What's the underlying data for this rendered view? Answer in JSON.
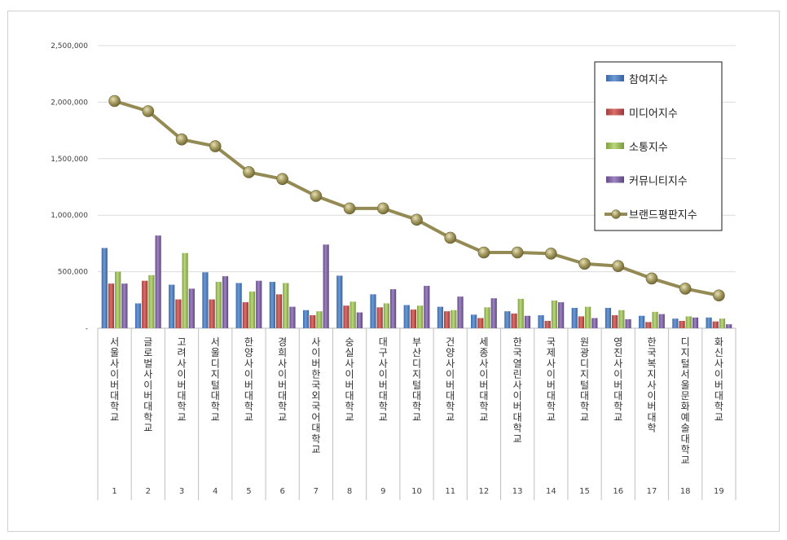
{
  "chart_data": {
    "type": "bar",
    "title": "",
    "xlabel": "",
    "ylabel": "",
    "ylim": [
      0,
      2500000
    ],
    "y_ticks": [
      "-",
      "500,000",
      "1,000,000",
      "1,500,000",
      "2,000,000",
      "2,500,000"
    ],
    "grid": true,
    "legend_position": "top-right",
    "categories": [
      "서울사이버대학교",
      "글로벌사이버대학교",
      "고려사이버대학교",
      "서울디지털대학교",
      "한양사이버대학교",
      "경희사이버대학교",
      "사이버한국외국어대학교",
      "숭실사이버대학교",
      "대구사이버대학교",
      "부산디지털대학교",
      "건양사이버대학교",
      "세종사이버대학교",
      "한국열린사이버대학교",
      "국제사이버대학교",
      "원광디지털대학교",
      "영진사이버대학교",
      "한국복지사이버대학",
      "디지털서울문화예술대학교",
      "화신사이버대학교"
    ],
    "ranks": [
      "1",
      "2",
      "3",
      "4",
      "5",
      "6",
      "7",
      "8",
      "9",
      "10",
      "11",
      "12",
      "13",
      "14",
      "15",
      "16",
      "17",
      "18",
      "19"
    ],
    "series": [
      {
        "name": "참여지수",
        "type": "bar",
        "color": "#4f81bd",
        "values": [
          710000,
          220000,
          385000,
          495000,
          400000,
          410000,
          160000,
          465000,
          300000,
          205000,
          190000,
          120000,
          150000,
          115000,
          180000,
          180000,
          110000,
          85000,
          95000
        ]
      },
      {
        "name": "미디어지수",
        "type": "bar",
        "color": "#c0504d",
        "values": [
          395000,
          420000,
          255000,
          255000,
          230000,
          300000,
          115000,
          200000,
          185000,
          165000,
          150000,
          90000,
          130000,
          65000,
          105000,
          115000,
          55000,
          65000,
          60000
        ]
      },
      {
        "name": "소통지수",
        "type": "bar",
        "color": "#9bbb59",
        "values": [
          500000,
          470000,
          665000,
          410000,
          325000,
          400000,
          150000,
          235000,
          220000,
          200000,
          160000,
          185000,
          260000,
          245000,
          190000,
          160000,
          145000,
          105000,
          85000
        ]
      },
      {
        "name": "커뮤니티지수",
        "type": "bar",
        "color": "#8064a2",
        "values": [
          395000,
          820000,
          350000,
          460000,
          420000,
          190000,
          740000,
          140000,
          345000,
          375000,
          280000,
          265000,
          110000,
          230000,
          90000,
          80000,
          125000,
          95000,
          35000
        ]
      },
      {
        "name": "브랜드평판지수",
        "type": "line",
        "color": "#948a54",
        "values": [
          2010000,
          1920000,
          1670000,
          1610000,
          1380000,
          1320000,
          1170000,
          1060000,
          1060000,
          960000,
          800000,
          670000,
          670000,
          660000,
          570000,
          550000,
          440000,
          350000,
          290000
        ]
      }
    ]
  }
}
